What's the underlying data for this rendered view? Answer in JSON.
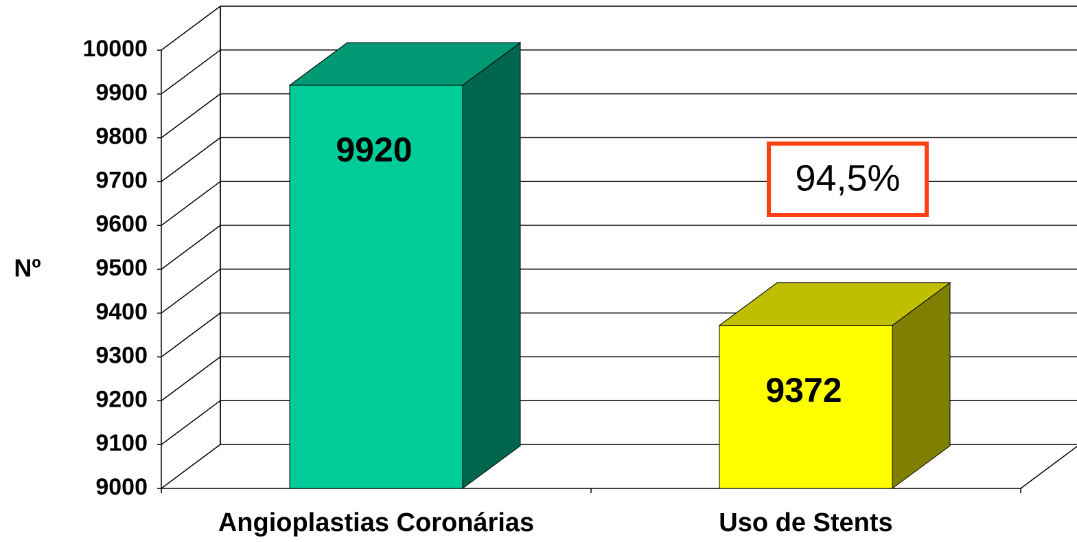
{
  "chart_data": {
    "type": "bar",
    "y_label": "Nº",
    "categories": [
      "Angioplastias Coronárias",
      "Uso de Stents"
    ],
    "values": [
      9920,
      9372
    ],
    "colors": [
      "#00cc99",
      "#ffff00"
    ],
    "ylim": [
      9000,
      10000
    ],
    "yticks": [
      9000,
      9100,
      9200,
      9300,
      9400,
      9500,
      9600,
      9700,
      9800,
      9900,
      10000
    ],
    "grid": true,
    "annotation": "94,5%"
  }
}
